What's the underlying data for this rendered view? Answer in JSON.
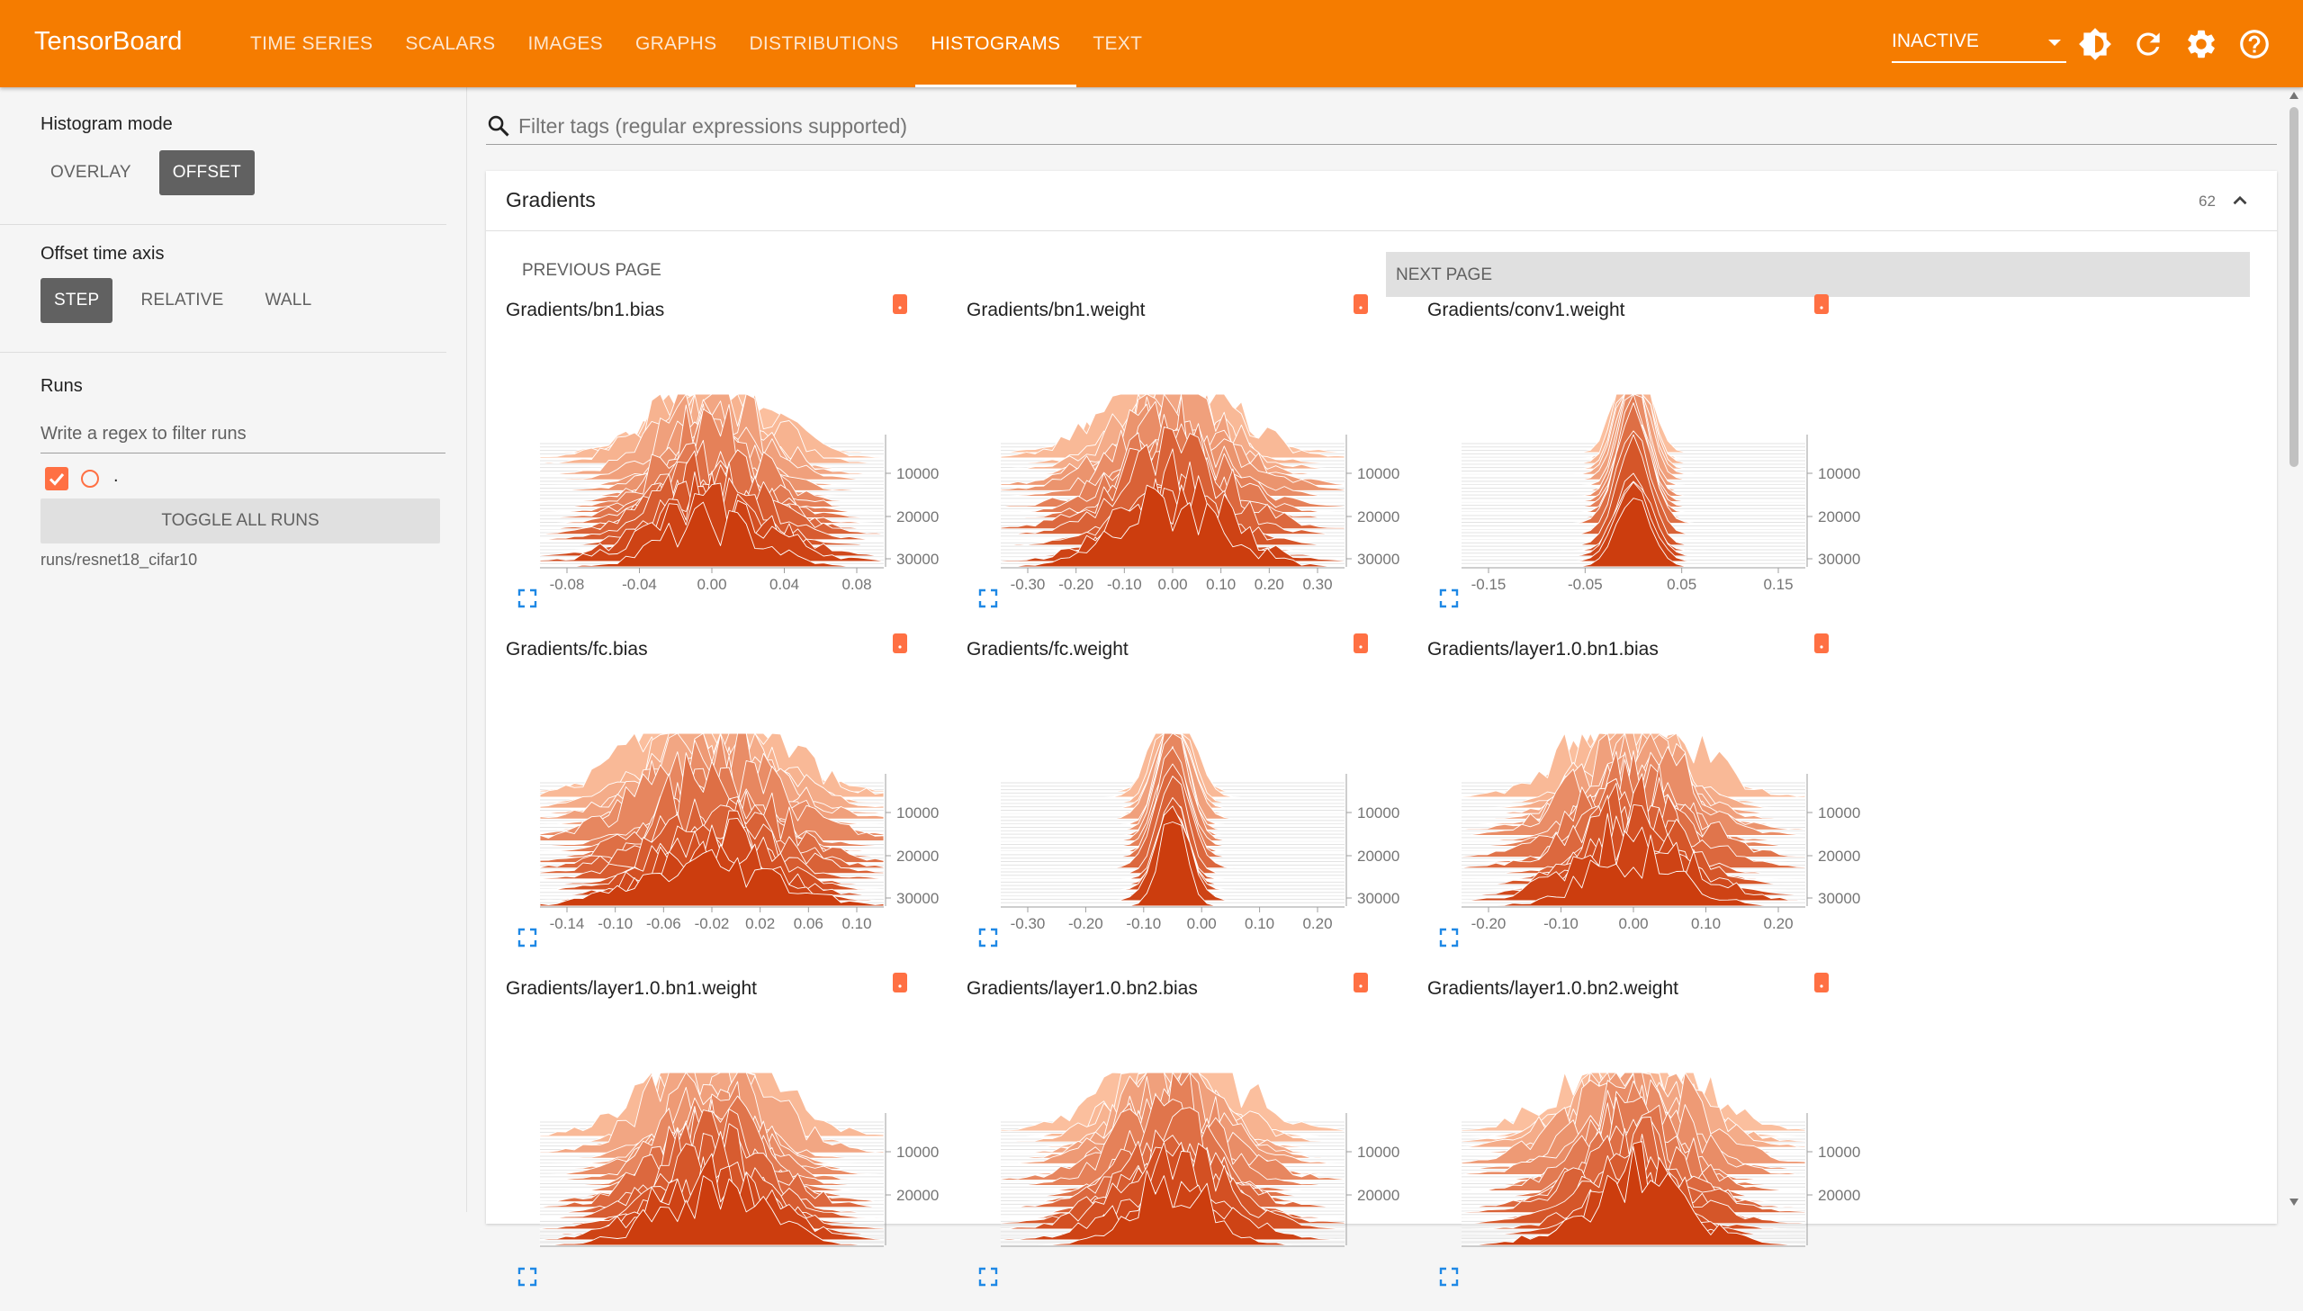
{
  "app": {
    "title": "TensorBoard"
  },
  "nav": {
    "tabs": [
      {
        "label": "TIME SERIES",
        "active": false
      },
      {
        "label": "SCALARS",
        "active": false
      },
      {
        "label": "IMAGES",
        "active": false
      },
      {
        "label": "GRAPHS",
        "active": false
      },
      {
        "label": "DISTRIBUTIONS",
        "active": false
      },
      {
        "label": "HISTOGRAMS",
        "active": true
      },
      {
        "label": "TEXT",
        "active": false
      }
    ],
    "run_selector": "INACTIVE",
    "icons": [
      "brightness-icon",
      "refresh-icon",
      "settings-icon",
      "help-icon"
    ]
  },
  "sidebar": {
    "histogram_mode": {
      "title": "Histogram mode",
      "options": [
        "OVERLAY",
        "OFFSET"
      ],
      "selected": "OFFSET"
    },
    "time_axis": {
      "title": "Offset time axis",
      "options": [
        "STEP",
        "RELATIVE",
        "WALL"
      ],
      "selected": "STEP"
    },
    "runs": {
      "title": "Runs",
      "filter_placeholder": "Write a regex to filter runs",
      "run_label": ".",
      "toggle_all": "TOGGLE ALL RUNS",
      "run_name": "runs/resnet18_cifar10"
    }
  },
  "main": {
    "filter_placeholder": "Filter tags (regular expressions supported)",
    "group": {
      "title": "Gradients",
      "count": "62"
    },
    "pager": {
      "prev": "PREVIOUS PAGE",
      "next": "NEXT PAGE"
    }
  },
  "colors": {
    "accent": "#f57c00",
    "hist_dark": "#cc3d0e",
    "hist_light": "#fbbf9e",
    "badge": "#ff7043"
  },
  "histograms": [
    {
      "title": "Gradients/bn1.bias",
      "x_ticks": [
        "-0.08",
        "-0.04",
        "0.00",
        "0.04",
        "0.08"
      ],
      "y_ticks": [
        "10000",
        "20000",
        "30000"
      ],
      "shape": "spread"
    },
    {
      "title": "Gradients/bn1.weight",
      "x_ticks": [
        "-0.30",
        "-0.20",
        "-0.10",
        "0.00",
        "0.10",
        "0.20",
        "0.30"
      ],
      "y_ticks": [
        "10000",
        "20000",
        "30000"
      ],
      "shape": "spread"
    },
    {
      "title": "Gradients/conv1.weight",
      "x_ticks": [
        "-0.15",
        "-0.05",
        "0.05",
        "0.15"
      ],
      "y_ticks": [
        "10000",
        "20000",
        "30000"
      ],
      "shape": "peaked"
    },
    {
      "title": "Gradients/fc.bias",
      "x_ticks": [
        "-0.14",
        "-0.10",
        "-0.06",
        "-0.02",
        "0.02",
        "0.06",
        "0.10"
      ],
      "y_ticks": [
        "10000",
        "20000",
        "30000"
      ],
      "shape": "spiky"
    },
    {
      "title": "Gradients/fc.weight",
      "x_ticks": [
        "-0.30",
        "-0.20",
        "-0.10",
        "0.00",
        "0.10",
        "0.20"
      ],
      "y_ticks": [
        "10000",
        "20000",
        "30000"
      ],
      "shape": "peaked"
    },
    {
      "title": "Gradients/layer1.0.bn1.bias",
      "x_ticks": [
        "-0.20",
        "-0.10",
        "0.00",
        "0.10",
        "0.20"
      ],
      "y_ticks": [
        "10000",
        "20000",
        "30000"
      ],
      "shape": "spread"
    },
    {
      "title": "Gradients/layer1.0.bn1.weight",
      "x_ticks": [],
      "y_ticks": [
        "10000",
        "20000"
      ],
      "shape": "spread"
    },
    {
      "title": "Gradients/layer1.0.bn2.bias",
      "x_ticks": [],
      "y_ticks": [
        "10000",
        "20000"
      ],
      "shape": "spread"
    },
    {
      "title": "Gradients/layer1.0.bn2.weight",
      "x_ticks": [],
      "y_ticks": [
        "10000",
        "20000"
      ],
      "shape": "spread"
    }
  ]
}
